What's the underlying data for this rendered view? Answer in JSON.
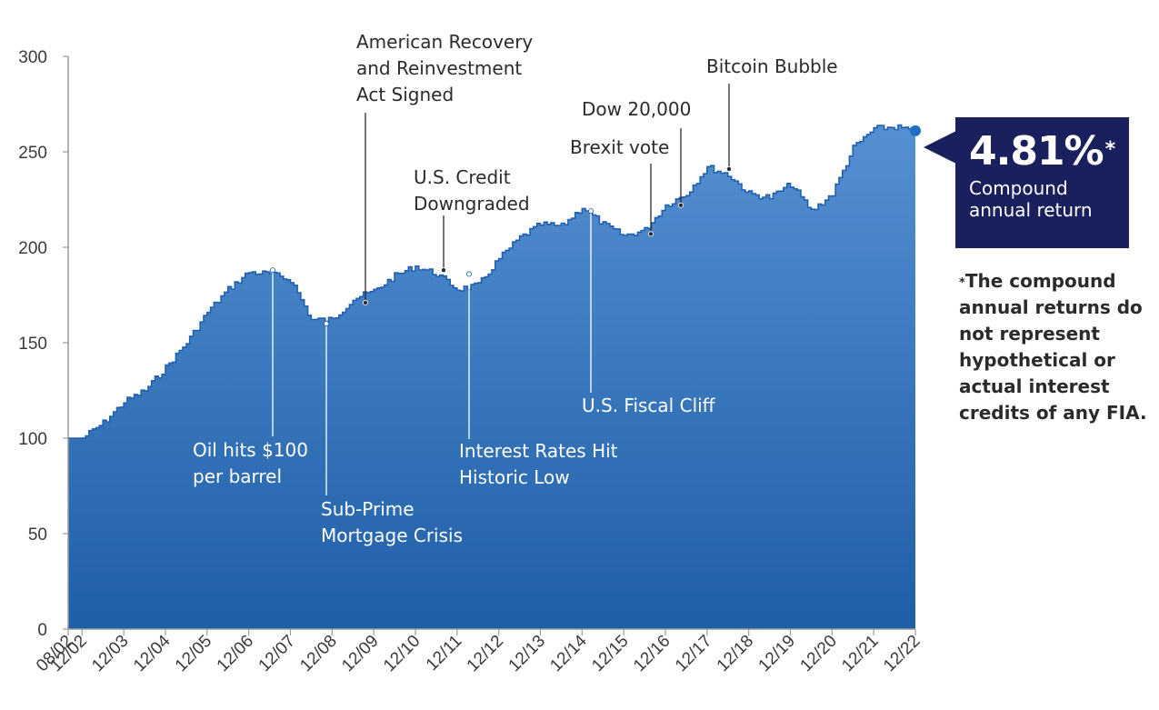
{
  "chart_data": {
    "type": "area",
    "title": "",
    "xlabel": "",
    "ylabel": "",
    "ylim": [
      0,
      300
    ],
    "y_ticks": [
      0,
      50,
      100,
      150,
      200,
      250,
      300
    ],
    "x_tick_labels": [
      "08/02",
      "12/02",
      "12/03",
      "12/04",
      "12/05",
      "12/06",
      "12/07",
      "12/08",
      "12/09",
      "12/10",
      "12/11",
      "12/12",
      "12/13",
      "12/14",
      "12/15",
      "12/16",
      "12/17",
      "12/18",
      "12/19",
      "12/20",
      "12/21",
      "12/22"
    ],
    "grid": false,
    "colors": {
      "area_top": "#5590d1",
      "area_bottom": "#1f5fa8",
      "line": "#2060b0",
      "end_marker": "#1e6fc0"
    },
    "series": [
      {
        "points": [
          [
            "08/02",
            100
          ],
          [
            "12/02",
            100
          ],
          [
            "06/03",
            108
          ],
          [
            "12/03",
            119
          ],
          [
            "06/04",
            125
          ],
          [
            "12/04",
            137
          ],
          [
            "06/05",
            150
          ],
          [
            "12/05",
            166
          ],
          [
            "06/06",
            178
          ],
          [
            "12/06",
            187
          ],
          [
            "06/07",
            186
          ],
          [
            "12/07",
            183
          ],
          [
            "06/08",
            162
          ],
          [
            "12/08",
            162
          ],
          [
            "06/09",
            173
          ],
          [
            "12/09",
            177
          ],
          [
            "06/10",
            185
          ],
          [
            "12/10",
            190
          ],
          [
            "06/11",
            186
          ],
          [
            "12/11",
            178
          ],
          [
            "06/12",
            180
          ],
          [
            "12/12",
            194
          ],
          [
            "06/13",
            205
          ],
          [
            "12/13",
            212
          ],
          [
            "06/14",
            211
          ],
          [
            "12/14",
            221
          ],
          [
            "06/15",
            212
          ],
          [
            "12/15",
            206
          ],
          [
            "06/16",
            209
          ],
          [
            "12/16",
            222
          ],
          [
            "06/17",
            228
          ],
          [
            "12/17",
            242
          ],
          [
            "06/18",
            238
          ],
          [
            "12/18",
            228
          ],
          [
            "06/19",
            226
          ],
          [
            "12/19",
            233
          ],
          [
            "06/20",
            219
          ],
          [
            "12/20",
            228
          ],
          [
            "06/21",
            252
          ],
          [
            "12/21",
            262
          ],
          [
            "06/22",
            263
          ],
          [
            "12/22",
            261
          ]
        ]
      }
    ],
    "annotations": [
      {
        "date": "12/06",
        "value": 188,
        "lines": [
          "Oil hits $100",
          "per barrel"
        ]
      },
      {
        "date": "12/07",
        "value": 160,
        "lines": [
          "Sub-Prime",
          "Mortgage Crisis"
        ]
      },
      {
        "date": "12/08",
        "value": 171,
        "lines": [
          "American Recovery",
          "and Reinvestment",
          "Act Signed"
        ]
      },
      {
        "date": "12/10",
        "value": 188,
        "lines": [
          "U.S. Credit",
          "Downgraded"
        ]
      },
      {
        "date": "12/11",
        "value": 186,
        "lines": [
          "Interest Rates Hit",
          "Historic Low"
        ]
      },
      {
        "date": "12/14",
        "value": 219,
        "lines": [
          "U.S. Fiscal Cliff"
        ]
      },
      {
        "date": "12/15",
        "value": 207,
        "lines": [
          "Brexit vote"
        ]
      },
      {
        "date": "12/16",
        "value": 222,
        "lines": [
          "Dow 20,000"
        ]
      },
      {
        "date": "12/17",
        "value": 241,
        "lines": [
          "Bitcoin Bubble"
        ]
      }
    ]
  },
  "callout": {
    "value": "4.81%",
    "asterisk": "*",
    "label_line1": "Compound",
    "label_line2": "annual return"
  },
  "footnote": {
    "asterisk": "*",
    "text": "The compound annual returns do not represent hypothetical or actual interest credits of any FIA."
  }
}
